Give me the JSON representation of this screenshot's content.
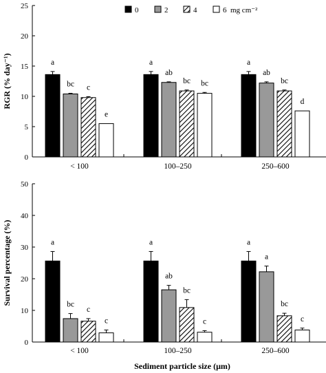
{
  "chart_data": [
    {
      "type": "bar",
      "ylabel": "RGR (% day⁻¹)",
      "ylim": [
        0,
        25
      ],
      "yticks": [
        0,
        5,
        10,
        15,
        20,
        25
      ],
      "categories": [
        "< 100",
        "100–250",
        "250–600"
      ],
      "series": [
        {
          "name": "0",
          "fill": "#000000",
          "pattern": "solid",
          "values": [
            13.6,
            13.6,
            13.6
          ],
          "errors": [
            0.5,
            0.5,
            0.5
          ],
          "labels": [
            "a",
            "a",
            "a"
          ]
        },
        {
          "name": "2",
          "fill": "#999999",
          "pattern": "solid",
          "values": [
            10.4,
            12.3,
            12.2
          ],
          "errors": [
            0.1,
            0.1,
            0.2
          ],
          "labels": [
            "bc",
            "ab",
            "ab"
          ]
        },
        {
          "name": "4",
          "fill": "#ffffff",
          "pattern": "hatch",
          "values": [
            9.8,
            10.9,
            10.9
          ],
          "errors": [
            0.15,
            0.15,
            0.15
          ],
          "labels": [
            "c",
            "bc",
            "bc"
          ]
        },
        {
          "name": "6",
          "fill": "#ffffff",
          "pattern": "solid",
          "values": [
            5.5,
            10.5,
            7.6
          ],
          "errors": [
            0,
            0.15,
            0
          ],
          "labels": [
            "e",
            "bc",
            "d"
          ]
        }
      ],
      "legend": {
        "items": [
          "0",
          "2",
          "4",
          "6"
        ],
        "unit": "mg cm⁻²",
        "placement": "top"
      }
    },
    {
      "type": "bar",
      "ylabel": "Survival percentage (%)",
      "xlabel": "Sediment particle size (μm)",
      "ylim": [
        0,
        50
      ],
      "yticks": [
        0,
        10,
        20,
        30,
        40,
        50
      ],
      "categories": [
        "< 100",
        "100–250",
        "250–600"
      ],
      "series": [
        {
          "name": "0",
          "fill": "#000000",
          "pattern": "solid",
          "values": [
            25.6,
            25.6,
            25.6
          ],
          "errors": [
            3.0,
            3.0,
            3.0
          ],
          "labels": [
            "a",
            "a",
            "a"
          ]
        },
        {
          "name": "2",
          "fill": "#999999",
          "pattern": "solid",
          "values": [
            7.4,
            16.5,
            22.2
          ],
          "errors": [
            1.6,
            1.4,
            1.8
          ],
          "labels": [
            "bc",
            "ab",
            "a"
          ]
        },
        {
          "name": "4",
          "fill": "#ffffff",
          "pattern": "hatch",
          "values": [
            6.6,
            10.9,
            8.3
          ],
          "errors": [
            0.8,
            2.5,
            0.8
          ],
          "labels": [
            "c",
            "bc",
            "bc"
          ]
        },
        {
          "name": "6",
          "fill": "#ffffff",
          "pattern": "solid",
          "values": [
            2.9,
            3.1,
            3.8
          ],
          "errors": [
            0.9,
            0.5,
            0.6
          ],
          "labels": [
            "c",
            "c",
            "c"
          ]
        }
      ]
    }
  ]
}
